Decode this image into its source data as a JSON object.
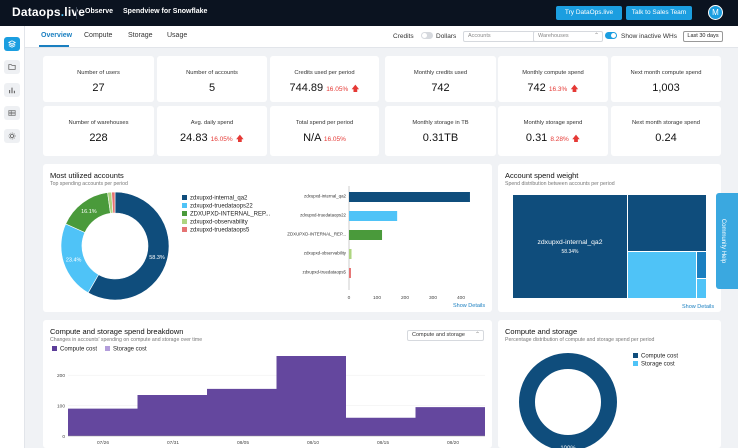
{
  "topbar": {
    "logo_main": "Dataops",
    "logo_dot": ".",
    "logo_suffix": "live",
    "nav_observe": "Observe",
    "nav_spendview": "Spendview for Snowflake",
    "btn_try": "Try DataOps.live",
    "btn_sales": "Talk to Sales Team",
    "avatar_initial": "M"
  },
  "rail": {
    "icons": [
      "stack-icon",
      "folder-icon",
      "bar-chart-icon",
      "table-icon",
      "gear-icon"
    ]
  },
  "tabs": [
    "Overview",
    "Compute",
    "Storage",
    "Usage"
  ],
  "filters": {
    "credits": "Credits",
    "dollars": "Dollars",
    "accounts_placeholder": "Accounts",
    "warehouses_placeholder": "Warehouses",
    "inactive_label": "Show inactive WHs",
    "last_days": "Last 30 days"
  },
  "stats": [
    {
      "title": "Number of users",
      "value": "27",
      "pct": ""
    },
    {
      "title": "Number of accounts",
      "value": "5",
      "pct": ""
    },
    {
      "title": "Credits used per period",
      "value": "744.89",
      "pct": "16.05%"
    },
    {
      "title": "Monthly credits used",
      "value": "742",
      "pct": ""
    },
    {
      "title": "Monthly compute spend",
      "value": "742",
      "pct": "16.3%"
    },
    {
      "title": "Next month compute spend",
      "value": "1,003",
      "pct": ""
    },
    {
      "title": "Number of warehouses",
      "value": "228",
      "pct": ""
    },
    {
      "title": "Avg. daily spend",
      "value": "24.83",
      "pct": "16.05%"
    },
    {
      "title": "Total spend per period",
      "value": "N/A",
      "pct": "16.05%"
    },
    {
      "title": "Monthly storage in TB",
      "value": "0.31TB",
      "pct": ""
    },
    {
      "title": "Monthly storage spend",
      "value": "0.31",
      "pct": "8.28%"
    },
    {
      "title": "Next month storage spend",
      "value": "0.24",
      "pct": ""
    }
  ],
  "most_utilized": {
    "title": "Most utilized accounts",
    "subtitle": "Top spending accounts per period",
    "show_details": "Show Details",
    "bar_ticks": [
      "0",
      "100",
      "200",
      "300",
      "400"
    ]
  },
  "spend_weight": {
    "title": "Account spend weight",
    "subtitle": "Spend distribution between accounts per period",
    "main_label": "zdxupxd-internal_qa2",
    "main_pct": "58.34%",
    "show_details": "Show Details"
  },
  "breakdown": {
    "title": "Compute and storage spend breakdown",
    "subtitle": "Changes in accounts' spending on compute and storage over time",
    "select_value": "Compute and storage",
    "legend_compute": "Compute cost",
    "legend_storage": "Storage cost"
  },
  "compute_storage": {
    "title": "Compute and storage",
    "subtitle": "Percentage distribution of compute and storage spend per period",
    "legend_compute": "Compute cost",
    "legend_storage": "Storage cost",
    "center_pct": "100%"
  },
  "community_help": "Community Help",
  "colors": {
    "navy": "#0f4d7c",
    "sky": "#4fc3f7",
    "green": "#4a9a3b",
    "lime": "#aed581",
    "orange": "#e57373",
    "purple": "#5c3d99",
    "accent": "#1b9ee0",
    "red": "#e53935"
  },
  "chart_data": [
    {
      "type": "pie",
      "title": "Most utilized accounts",
      "categories": [
        "zdxupxd-internal_qa2",
        "zdxupxd-truedataops22",
        "ZDXUPXD-INTERNAL_REP...",
        "zdxupxd-observability",
        "zdxupxd-truedataops5"
      ],
      "values": [
        58.3,
        23.4,
        16.1,
        1.2,
        1.0
      ],
      "data_labels": [
        "58.3%",
        "23.4%",
        "16.1%",
        "",
        ""
      ]
    },
    {
      "type": "bar",
      "orientation": "horizontal",
      "categories": [
        "zdxupxd-internal_qa2",
        "zdxupxd-truedataops22",
        "ZDXUPXD-INTERNAL_REP...",
        "zdxupxd-observability",
        "zdxupxd-truedataops5"
      ],
      "values": [
        432,
        172,
        118,
        9,
        7
      ],
      "xlim": [
        0,
        450
      ]
    },
    {
      "type": "area",
      "title": "Compute and storage spend breakdown",
      "x": [
        "07/26",
        "07/31",
        "08/05",
        "08/10",
        "08/15",
        "08/20"
      ],
      "series": [
        {
          "name": "Compute cost",
          "values": [
            90,
            135,
            155,
            265,
            60,
            95
          ]
        },
        {
          "name": "Storage cost",
          "values": [
            0,
            0,
            0,
            0,
            0,
            0
          ]
        }
      ],
      "ylim": [
        0,
        250
      ],
      "y_ticks": [
        "0",
        "100",
        "200"
      ]
    },
    {
      "type": "pie",
      "title": "Compute and storage",
      "categories": [
        "Compute cost",
        "Storage cost"
      ],
      "values": [
        100,
        0
      ],
      "data_labels": [
        "100%",
        ""
      ]
    }
  ]
}
